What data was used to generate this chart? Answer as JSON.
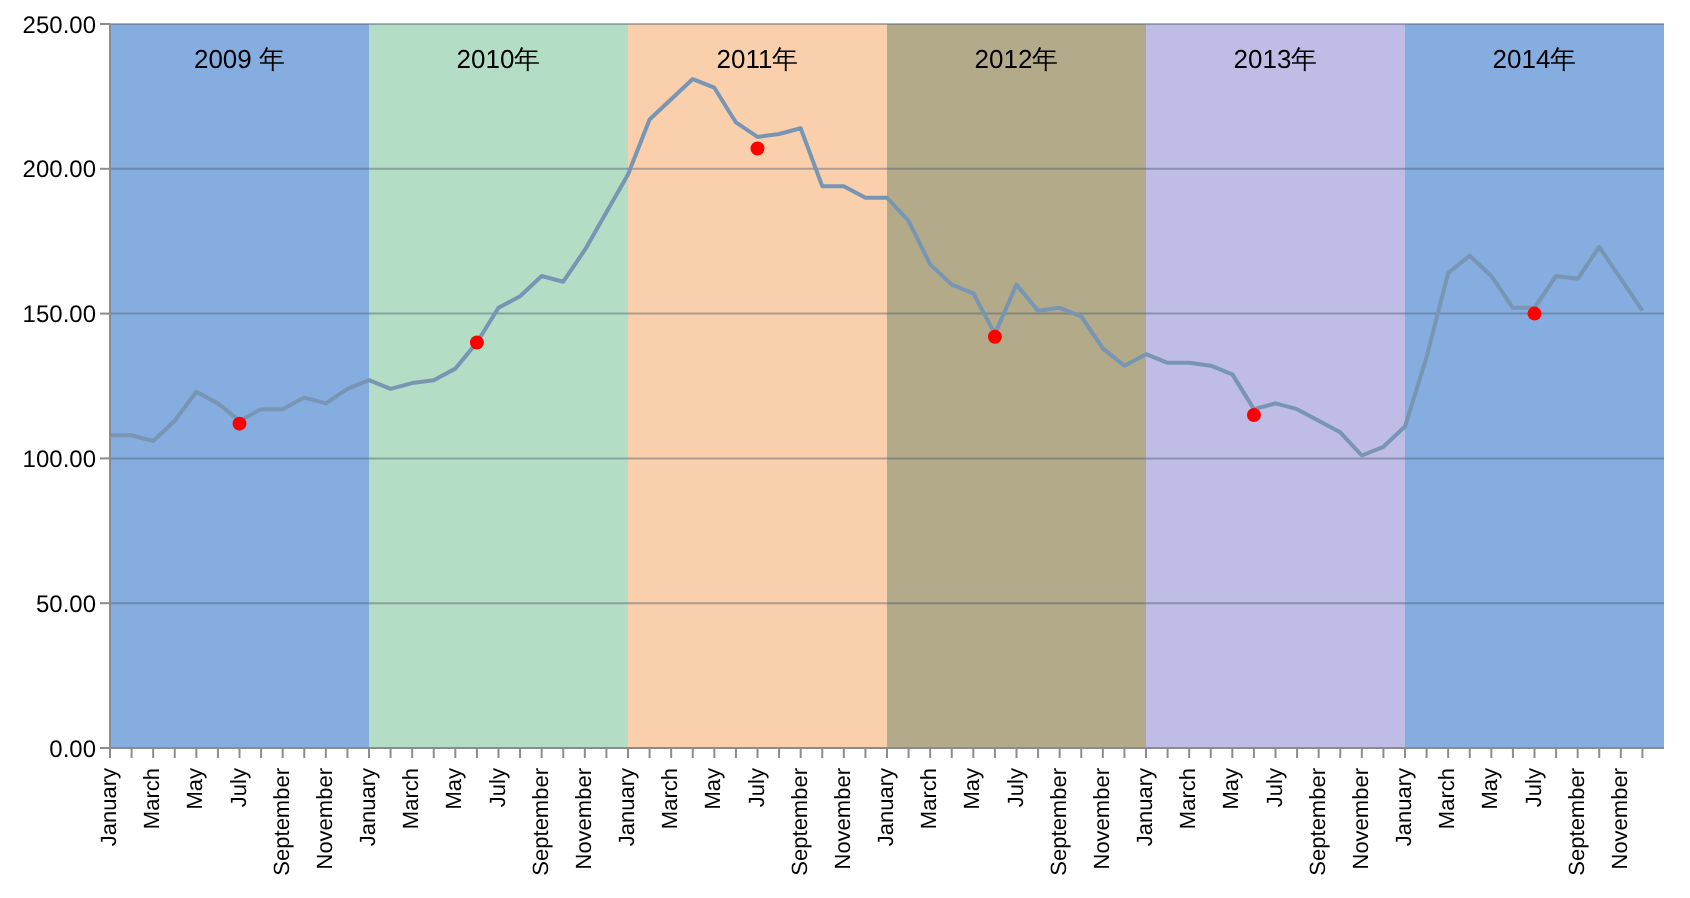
{
  "chart_data": {
    "type": "line",
    "x": [
      "2009-01",
      "2009-02",
      "2009-03",
      "2009-04",
      "2009-05",
      "2009-06",
      "2009-07",
      "2009-08",
      "2009-09",
      "2009-10",
      "2009-11",
      "2009-12",
      "2010-01",
      "2010-02",
      "2010-03",
      "2010-04",
      "2010-05",
      "2010-06",
      "2010-07",
      "2010-08",
      "2010-09",
      "2010-10",
      "2010-11",
      "2010-12",
      "2011-01",
      "2011-02",
      "2011-03",
      "2011-04",
      "2011-05",
      "2011-06",
      "2011-07",
      "2011-08",
      "2011-09",
      "2011-10",
      "2011-11",
      "2011-12",
      "2012-01",
      "2012-02",
      "2012-03",
      "2012-04",
      "2012-05",
      "2012-06",
      "2012-07",
      "2012-08",
      "2012-09",
      "2012-10",
      "2012-11",
      "2012-12",
      "2013-01",
      "2013-02",
      "2013-03",
      "2013-04",
      "2013-05",
      "2013-06",
      "2013-07",
      "2013-08",
      "2013-09",
      "2013-10",
      "2013-11",
      "2013-12",
      "2014-01",
      "2014-02",
      "2014-03",
      "2014-04",
      "2014-05",
      "2014-06",
      "2014-07",
      "2014-08",
      "2014-09",
      "2014-10",
      "2014-11",
      "2014-12"
    ],
    "xlim": [
      "2009-01",
      "2015-01"
    ],
    "xticks": [
      {
        "value": "2009-01",
        "label": "January"
      },
      {
        "value": "2009-03",
        "label": "March"
      },
      {
        "value": "2009-05",
        "label": "May"
      },
      {
        "value": "2009-07",
        "label": "July"
      },
      {
        "value": "2009-09",
        "label": "September"
      },
      {
        "value": "2009-11",
        "label": "November"
      },
      {
        "value": "2010-01",
        "label": "January"
      },
      {
        "value": "2010-03",
        "label": "March"
      },
      {
        "value": "2010-05",
        "label": "May"
      },
      {
        "value": "2010-07",
        "label": "July"
      },
      {
        "value": "2010-09",
        "label": "September"
      },
      {
        "value": "2010-11",
        "label": "November"
      },
      {
        "value": "2011-01",
        "label": "January"
      },
      {
        "value": "2011-03",
        "label": "March"
      },
      {
        "value": "2011-05",
        "label": "May"
      },
      {
        "value": "2011-07",
        "label": "July"
      },
      {
        "value": "2011-09",
        "label": "September"
      },
      {
        "value": "2011-11",
        "label": "November"
      },
      {
        "value": "2012-01",
        "label": "January"
      },
      {
        "value": "2012-03",
        "label": "March"
      },
      {
        "value": "2012-05",
        "label": "May"
      },
      {
        "value": "2012-07",
        "label": "July"
      },
      {
        "value": "2012-09",
        "label": "September"
      },
      {
        "value": "2012-11",
        "label": "November"
      },
      {
        "value": "2013-01",
        "label": "January"
      },
      {
        "value": "2013-03",
        "label": "March"
      },
      {
        "value": "2013-05",
        "label": "May"
      },
      {
        "value": "2013-07",
        "label": "July"
      },
      {
        "value": "2013-09",
        "label": "September"
      },
      {
        "value": "2013-11",
        "label": "November"
      },
      {
        "value": "2014-01",
        "label": "January"
      },
      {
        "value": "2014-03",
        "label": "March"
      },
      {
        "value": "2014-05",
        "label": "May"
      },
      {
        "value": "2014-07",
        "label": "July"
      },
      {
        "value": "2014-09",
        "label": "September"
      },
      {
        "value": "2014-11",
        "label": "November"
      }
    ],
    "ylim": [
      0,
      250
    ],
    "yticks": [
      {
        "value": 0,
        "label": "0.00"
      },
      {
        "value": 50,
        "label": "50.00"
      },
      {
        "value": 100,
        "label": "100.00"
      },
      {
        "value": 150,
        "label": "150.00"
      },
      {
        "value": 200,
        "label": "200.00"
      },
      {
        "value": 250,
        "label": "250.00"
      }
    ],
    "grid": "y",
    "marker": "none",
    "series": [
      {
        "color": "#7896b4",
        "values": [
          108,
          108,
          106,
          113,
          123,
          119,
          113,
          117,
          117,
          121,
          119,
          124,
          127,
          124,
          126,
          127,
          131,
          140,
          152,
          156,
          163,
          161,
          172,
          185,
          198,
          217,
          224,
          231,
          228,
          216,
          211,
          212,
          214,
          194,
          194,
          190,
          190,
          182,
          167,
          160,
          157,
          143,
          160,
          151,
          152,
          149,
          138,
          132,
          136,
          133,
          133,
          132,
          129,
          117,
          119,
          117,
          113,
          109,
          101,
          104,
          111,
          135,
          164,
          170,
          163,
          152,
          152,
          163,
          162,
          173,
          162,
          151
        ]
      },
      {
        "type": "scatter",
        "color": "#ff0000",
        "marker": "circle",
        "x": [
          "2009-07",
          "2010-06",
          "2011-07",
          "2012-06",
          "2013-06",
          "2014-07"
        ],
        "values": [
          112,
          140,
          207,
          142,
          115,
          150
        ]
      }
    ],
    "bands": [
      {
        "axis": "x",
        "from": "2009-01",
        "to": "2010-01",
        "label": "2009 年",
        "color": "#85ade0"
      },
      {
        "axis": "x",
        "from": "2010-01",
        "to": "2011-01",
        "label": "2010年",
        "color": "#b3dec5"
      },
      {
        "axis": "x",
        "from": "2011-01",
        "to": "2012-01",
        "label": "2011年",
        "color": "#fad0ac"
      },
      {
        "axis": "x",
        "from": "2012-01",
        "to": "2013-01",
        "label": "2012年",
        "color": "#b2aa88"
      },
      {
        "axis": "x",
        "from": "2013-01",
        "to": "2014-01",
        "label": "2013年",
        "color": "#bfbce6"
      },
      {
        "axis": "x",
        "from": "2014-01",
        "to": "2015-01",
        "label": "2014年",
        "color": "#85ade0"
      }
    ]
  }
}
